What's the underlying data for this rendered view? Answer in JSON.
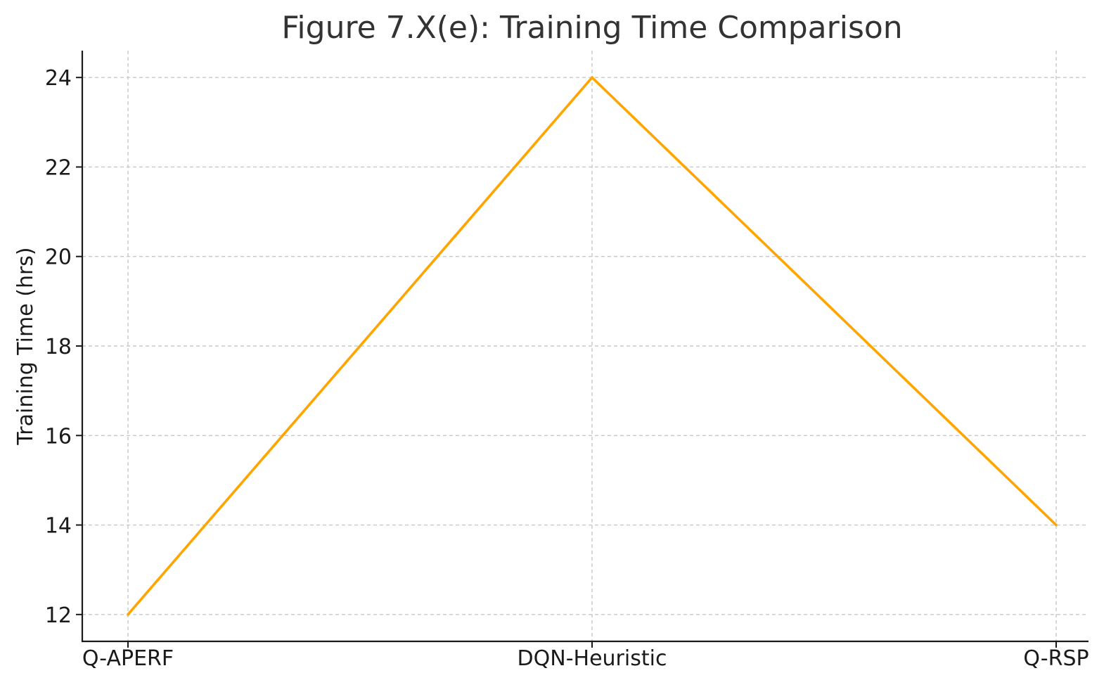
{
  "chart_data": {
    "type": "line",
    "title": "Figure 7.X(e): Training Time Comparison",
    "xlabel": "",
    "ylabel": "Training Time (hrs)",
    "categories": [
      "Q-APERF",
      "DQN-Heuristic",
      "Q-RSP"
    ],
    "series": [
      {
        "values": [
          12,
          24,
          14
        ],
        "color": "#FFA500"
      }
    ],
    "ylim": [
      11.4,
      24.6
    ],
    "yticks": [
      12,
      14,
      16,
      18,
      20,
      22,
      24
    ],
    "grid": true,
    "grid_style": "dashed",
    "legend": "none"
  }
}
